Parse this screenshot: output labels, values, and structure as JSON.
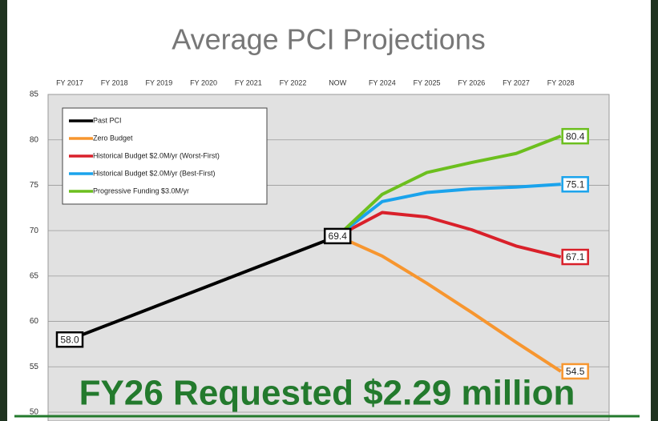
{
  "chart_data": {
    "type": "line",
    "title": "Average PCI Projections",
    "categories": [
      "FY 2017",
      "FY 2018",
      "FY 2019",
      "FY 2020",
      "FY 2021",
      "FY 2022",
      "NOW",
      "FY 2024",
      "FY 2025",
      "FY 2026",
      "FY 2027",
      "FY 2028"
    ],
    "series": [
      {
        "name": "Past PCI",
        "color": "#000000",
        "values": [
          58.0,
          59.9,
          61.8,
          63.7,
          65.6,
          67.5,
          69.4,
          null,
          null,
          null,
          null,
          null
        ],
        "value_labels": [
          "58.0",
          null,
          null,
          null,
          null,
          null,
          "69.4",
          null,
          null,
          null,
          null,
          null
        ]
      },
      {
        "name": "Zero Budget",
        "color": "#f7962f",
        "values": [
          null,
          null,
          null,
          null,
          null,
          null,
          69.4,
          67.2,
          64.2,
          61.0,
          57.7,
          54.5
        ],
        "value_labels": [
          null,
          null,
          null,
          null,
          null,
          null,
          null,
          null,
          null,
          null,
          null,
          "54.5"
        ]
      },
      {
        "name": "Historical Budget $2.0M/yr (Worst-First)",
        "color": "#d9202a",
        "values": [
          null,
          null,
          null,
          null,
          null,
          null,
          69.4,
          72.0,
          71.5,
          70.1,
          68.3,
          67.1
        ],
        "value_labels": [
          null,
          null,
          null,
          null,
          null,
          null,
          null,
          null,
          null,
          null,
          null,
          "67.1"
        ]
      },
      {
        "name": "Historical Budget $2.0M/yr (Best-First)",
        "color": "#1aa3ec",
        "values": [
          null,
          null,
          null,
          null,
          null,
          null,
          69.4,
          73.2,
          74.2,
          74.6,
          74.8,
          75.1
        ],
        "value_labels": [
          null,
          null,
          null,
          null,
          null,
          null,
          null,
          null,
          null,
          null,
          null,
          "75.1"
        ]
      },
      {
        "name": "Progressive Funding $3.0M/yr",
        "color": "#6cbf1e",
        "values": [
          null,
          null,
          null,
          null,
          null,
          null,
          69.4,
          74.0,
          76.4,
          77.5,
          78.5,
          80.4
        ],
        "value_labels": [
          null,
          null,
          null,
          null,
          null,
          null,
          null,
          null,
          null,
          null,
          null,
          "80.4"
        ]
      }
    ],
    "ylim": [
      50,
      85
    ],
    "yticks": [
      50,
      55,
      60,
      65,
      70,
      75,
      80,
      85
    ],
    "grid": true,
    "legend": "upper left"
  },
  "banner": "FY26 Requested $2.29 million"
}
